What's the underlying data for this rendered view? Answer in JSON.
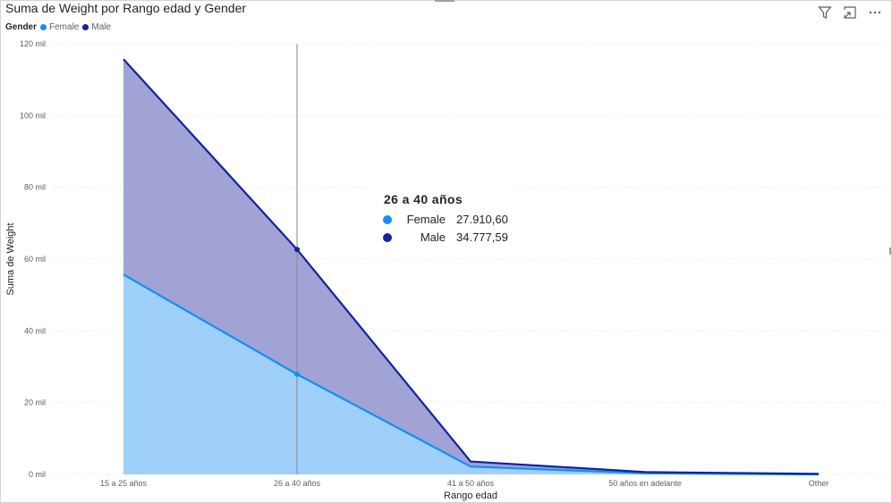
{
  "visual": {
    "title": "Suma de Weight por Rango edad y Gender",
    "legend_title": "Gender",
    "legend": [
      {
        "label": "Female",
        "color": "#118dff"
      },
      {
        "label": "Male",
        "color": "#12239e"
      }
    ],
    "header_icons": [
      "filter-icon",
      "focus-mode-icon",
      "more-options-icon"
    ]
  },
  "tooltip": {
    "title": "26 a 40 años",
    "rows": [
      {
        "name": "Female",
        "value": "27.910,60",
        "color": "#118dff"
      },
      {
        "name": "Male",
        "value": "34.777,59",
        "color": "#12239e"
      }
    ]
  },
  "chart_data": {
    "type": "area",
    "stacked": true,
    "title": "Suma de Weight por Rango edad y Gender",
    "xlabel": "Rango edad",
    "ylabel": "Suma de Weight",
    "categories": [
      "15 a 25 años",
      "26 a 40 años",
      "41 a 50 años",
      "50 años en adelante",
      "Other"
    ],
    "series": [
      {
        "name": "Female",
        "color": "#118dff",
        "fill": "#9fd0fb",
        "values": [
          55700,
          27910.6,
          2200,
          300,
          0
        ]
      },
      {
        "name": "Male",
        "color": "#12239e",
        "fill": "#a0a3d3",
        "values": [
          60000,
          34777.59,
          1400,
          350,
          150
        ]
      }
    ],
    "ylim": [
      0,
      120000
    ],
    "yticks": [
      0,
      20000,
      40000,
      60000,
      80000,
      100000,
      120000
    ],
    "ytick_labels": [
      "0 mil",
      "20 mil",
      "40 mil",
      "60 mil",
      "80 mil",
      "100 mil",
      "120 mil"
    ],
    "grid": true,
    "legend_position": "top-left",
    "highlighted_category": "26 a 40 años"
  }
}
